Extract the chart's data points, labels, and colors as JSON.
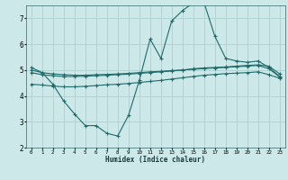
{
  "xlabel": "Humidex (Indice chaleur)",
  "bg_color": "#cce8e8",
  "line_color": "#1e6b6b",
  "grid_color": "#b0d4d4",
  "xlim": [
    -0.5,
    23.5
  ],
  "ylim": [
    2,
    7.5
  ],
  "yticks": [
    2,
    3,
    4,
    5,
    6,
    7
  ],
  "xticks": [
    0,
    1,
    2,
    3,
    4,
    5,
    6,
    7,
    8,
    9,
    10,
    11,
    12,
    13,
    14,
    15,
    16,
    17,
    18,
    19,
    20,
    21,
    22,
    23
  ],
  "series1_x": [
    0,
    1,
    2,
    3,
    4,
    5,
    6,
    7,
    8,
    9,
    10,
    11,
    12,
    13,
    14,
    15,
    16,
    17,
    18,
    19,
    20,
    21,
    22,
    23
  ],
  "series1_y": [
    5.1,
    4.9,
    4.45,
    3.8,
    3.3,
    2.85,
    2.85,
    2.55,
    2.45,
    3.25,
    4.6,
    6.2,
    5.45,
    6.9,
    7.3,
    7.6,
    7.6,
    6.3,
    5.45,
    5.35,
    5.3,
    5.35,
    5.1,
    4.75
  ],
  "series2_x": [
    0,
    1,
    2,
    3,
    4,
    5,
    6,
    7,
    8,
    9,
    10,
    11,
    12,
    13,
    14,
    15,
    16,
    17,
    18,
    19,
    20,
    21,
    22,
    23
  ],
  "series2_y": [
    5.0,
    4.9,
    4.85,
    4.82,
    4.8,
    4.8,
    4.82,
    4.83,
    4.85,
    4.87,
    4.9,
    4.93,
    4.95,
    4.98,
    5.0,
    5.05,
    5.08,
    5.1,
    5.12,
    5.15,
    5.18,
    5.2,
    5.15,
    4.85
  ],
  "series3_x": [
    0,
    1,
    2,
    3,
    4,
    5,
    6,
    7,
    8,
    9,
    10,
    11,
    12,
    13,
    14,
    15,
    16,
    17,
    18,
    19,
    20,
    21,
    22,
    23
  ],
  "series3_y": [
    4.9,
    4.82,
    4.78,
    4.75,
    4.75,
    4.76,
    4.78,
    4.8,
    4.82,
    4.84,
    4.87,
    4.9,
    4.93,
    4.96,
    5.0,
    5.03,
    5.06,
    5.08,
    5.1,
    5.13,
    5.15,
    5.18,
    5.05,
    4.73
  ],
  "series4_x": [
    0,
    1,
    2,
    3,
    4,
    5,
    6,
    7,
    8,
    9,
    10,
    11,
    12,
    13,
    14,
    15,
    16,
    17,
    18,
    19,
    20,
    21,
    22,
    23
  ],
  "series4_y": [
    4.45,
    4.42,
    4.38,
    4.35,
    4.35,
    4.37,
    4.4,
    4.43,
    4.45,
    4.48,
    4.52,
    4.56,
    4.6,
    4.65,
    4.7,
    4.75,
    4.8,
    4.83,
    4.86,
    4.88,
    4.9,
    4.93,
    4.82,
    4.68
  ]
}
